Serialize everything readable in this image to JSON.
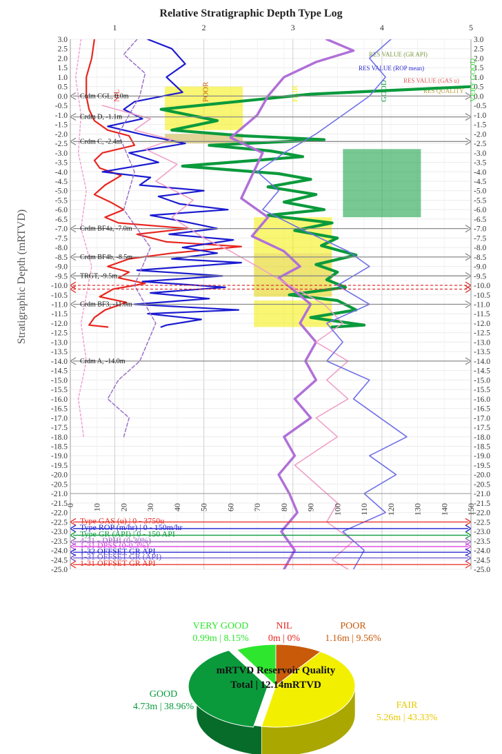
{
  "chart_data": {
    "type": "line",
    "title": "Relative Stratigraphic Depth Type Log",
    "ylabel": "Stratigraphic Depth (mRTVD)",
    "ylim": [
      -25.0,
      3.0
    ],
    "y_tick_step": 0.5,
    "x_bottom": {
      "range": [
        0,
        150
      ],
      "ticks": [
        0,
        10,
        20,
        30,
        40,
        50,
        60,
        70,
        80,
        90,
        100,
        110,
        120,
        130,
        140,
        150
      ]
    },
    "x_top": {
      "range": [
        0.5,
        5
      ],
      "ticks": [
        1,
        2,
        3,
        4,
        5
      ]
    },
    "quality_columns": [
      "NIL",
      "POOR",
      "FAIR",
      "GOOD",
      "VERY GOOD"
    ],
    "quality_colors": {
      "NIL": "#e8261f",
      "POOR": "#c85a0a",
      "FAIR": "#f2ef00",
      "GOOD": "#0a9a3c",
      "VERY GOOD": "#2ee62e"
    },
    "res_value_labels": [
      "RES VALUE (GR API)",
      "RES VALUE (ROP mean)",
      "RES VALUE (GAS u)",
      "RES QUALITY"
    ],
    "markers": [
      {
        "label": "Crdm CGL, 0.0m",
        "depth": 0.0,
        "color": "#8a8a8a"
      },
      {
        "label": "Crdm D, -1.1m",
        "depth": -1.1,
        "color": "#8a8a8a"
      },
      {
        "label": "Crdm C, -2.4m",
        "depth": -2.4,
        "color": "#8a8a8a"
      },
      {
        "label": "Crdm BF4a, -7.0m",
        "depth": -7.0,
        "color": "#8a8a8a"
      },
      {
        "label": "Crdm BF4b, -8.5m",
        "depth": -8.5,
        "color": "#8a8a8a"
      },
      {
        "label": "TRGT, -9.5m",
        "depth": -9.5,
        "color": "#8a8a8a"
      },
      {
        "label": "",
        "depth": -10.0,
        "color": "#e03030"
      },
      {
        "label": "",
        "depth": -10.2,
        "color": "#e03030"
      },
      {
        "label": "Crdm BF3, -11.0m",
        "depth": -11.0,
        "color": "#8a8a8a"
      },
      {
        "label": "Crdm A, -14.0m",
        "depth": -14.0,
        "color": "#8a8a8a"
      }
    ],
    "legend": [
      {
        "label": "Type GAS (u) | 0 - 3750u",
        "depth": -22.5,
        "color": "#e8261f"
      },
      {
        "label": "Type ROP (m/hr) | 0 - 150m/hr",
        "depth": -22.85,
        "color": "#1a1ad0"
      },
      {
        "label": "Type GR (API) | 0 - 150 API",
        "depth": -23.2,
        "color": "#0a9a3c"
      },
      {
        "label": "4-31 - DPHI (0-30%)",
        "depth": -23.55,
        "color": "#9b5fc0"
      },
      {
        "label": "1-31 DPSS (0-0.3%)",
        "depth": -23.8,
        "color": "#e040e0"
      },
      {
        "label": "1-32 OFFSET GR API",
        "depth": -24.1,
        "color": "#1a1ad0"
      },
      {
        "label": "1-31 OFFSET GR (API)",
        "depth": -24.4,
        "color": "#6a4fd0"
      },
      {
        "label": "1-31 OFFSET GR API",
        "depth": -24.75,
        "color": "#e8261f"
      }
    ],
    "series": [
      {
        "name": "Type GAS (u) | 0 - 3750u",
        "color": "#e8261f",
        "width": 2.2,
        "points": [
          [
            9,
            3
          ],
          [
            8,
            2
          ],
          [
            6,
            1
          ],
          [
            6,
            0
          ],
          [
            7,
            -0.7
          ],
          [
            9,
            -1.3
          ],
          [
            14,
            -1.8
          ],
          [
            22,
            -2.1
          ],
          [
            24,
            -2.6
          ],
          [
            12,
            -3
          ],
          [
            9,
            -3.4
          ],
          [
            11,
            -3.8
          ],
          [
            19,
            -4.2
          ],
          [
            13,
            -4.7
          ],
          [
            9,
            -5.2
          ],
          [
            15,
            -5.6
          ],
          [
            20,
            -6
          ],
          [
            13,
            -6.4
          ],
          [
            18,
            -6.7
          ],
          [
            44,
            -7
          ],
          [
            25,
            -7.3
          ],
          [
            36,
            -7.7
          ],
          [
            64,
            -7.95
          ],
          [
            38,
            -8.3
          ],
          [
            22,
            -8.6
          ],
          [
            14,
            -9
          ],
          [
            22,
            -9.3
          ],
          [
            18,
            -9.6
          ],
          [
            28,
            -9.9
          ],
          [
            16,
            -10.2
          ],
          [
            11,
            -10.6
          ],
          [
            21,
            -10.9
          ],
          [
            13,
            -11.3
          ],
          [
            9,
            -11.7
          ],
          [
            7,
            -12.1
          ],
          [
            14,
            -12.2
          ]
        ]
      },
      {
        "name": "Type ROP (m/hr) | 0 - 150m/hr",
        "color": "#1a1ad0",
        "width": 2.2,
        "points": [
          [
            29,
            3
          ],
          [
            38,
            2.5
          ],
          [
            43,
            1.7
          ],
          [
            36,
            1
          ],
          [
            42,
            0.2
          ],
          [
            24,
            -0.3
          ],
          [
            20,
            -0.7
          ],
          [
            27,
            -1.2
          ],
          [
            14,
            -1.6
          ],
          [
            29,
            -2.1
          ],
          [
            43,
            -2.5
          ],
          [
            22,
            -3
          ],
          [
            33,
            -3.5
          ],
          [
            12,
            -4
          ],
          [
            30,
            -4.3
          ],
          [
            26,
            -4.7
          ],
          [
            50,
            -5
          ],
          [
            33,
            -5.3
          ],
          [
            41,
            -5.7
          ],
          [
            59,
            -6
          ],
          [
            30,
            -6.3
          ],
          [
            45,
            -6.7
          ],
          [
            55,
            -7
          ],
          [
            37,
            -7.3
          ],
          [
            61,
            -7.6
          ],
          [
            42,
            -8
          ],
          [
            55,
            -8.3
          ],
          [
            38,
            -8.6
          ],
          [
            64,
            -8.8
          ],
          [
            25,
            -9.2
          ],
          [
            57,
            -9.5
          ],
          [
            27,
            -9.8
          ],
          [
            58,
            -10.1
          ],
          [
            30,
            -10.4
          ],
          [
            52,
            -10.7
          ],
          [
            24,
            -11
          ],
          [
            63,
            -11.3
          ],
          [
            29,
            -11.5
          ],
          [
            49,
            -11.8
          ],
          [
            36,
            -12.1
          ],
          [
            34,
            -12.2
          ]
        ]
      },
      {
        "name": "Type GR (API) | 0 - 150 API",
        "color": "#0a9a3c",
        "width": 4.2,
        "points": [
          [
            150,
            0.5
          ],
          [
            90,
            0.1
          ],
          [
            34,
            -0.7
          ],
          [
            55,
            -1.3
          ],
          [
            38,
            -1.8
          ],
          [
            65,
            -2.1
          ],
          [
            95,
            -2.3
          ],
          [
            52,
            -2.6
          ],
          [
            75,
            -2.9
          ],
          [
            87,
            -3.2
          ],
          [
            42,
            -3.7
          ],
          [
            78,
            -4.1
          ],
          [
            90,
            -4.4
          ],
          [
            74,
            -4.8
          ],
          [
            92,
            -5.2
          ],
          [
            80,
            -5.6
          ],
          [
            95,
            -6
          ],
          [
            74,
            -6.3
          ],
          [
            98,
            -6.7
          ],
          [
            84,
            -7.1
          ],
          [
            100,
            -7.5
          ],
          [
            94,
            -7.9
          ],
          [
            107,
            -8.4
          ],
          [
            92,
            -8.9
          ],
          [
            100,
            -9.3
          ],
          [
            96,
            -9.7
          ],
          [
            103,
            -10.1
          ],
          [
            82,
            -10.5
          ],
          [
            100,
            -10.8
          ],
          [
            107,
            -11.3
          ],
          [
            90,
            -11.7
          ],
          [
            110,
            -12.1
          ],
          [
            98,
            -12.2
          ]
        ]
      },
      {
        "name": "4-31 - DPHI (0-30%)",
        "color": "#b070d8",
        "width": 3.5,
        "points": [
          [
            96,
            3
          ],
          [
            106,
            2.4
          ],
          [
            92,
            1.8
          ],
          [
            80,
            1
          ],
          [
            74,
            0
          ],
          [
            70,
            -1
          ],
          [
            60,
            -2.2
          ],
          [
            72,
            -3
          ],
          [
            68,
            -4.2
          ],
          [
            64,
            -5.4
          ],
          [
            74,
            -6.4
          ],
          [
            68,
            -7.4
          ],
          [
            80,
            -8.2
          ],
          [
            86,
            -9
          ],
          [
            78,
            -9.6
          ],
          [
            84,
            -10.3
          ],
          [
            90,
            -11
          ],
          [
            86,
            -12
          ],
          [
            92,
            -13
          ],
          [
            88,
            -14
          ],
          [
            92,
            -15
          ],
          [
            84,
            -16
          ],
          [
            90,
            -17
          ],
          [
            80,
            -18
          ],
          [
            84,
            -19
          ],
          [
            78,
            -20
          ],
          [
            82,
            -21
          ],
          [
            85,
            -22
          ],
          [
            79,
            -23
          ],
          [
            84,
            -24
          ],
          [
            80,
            -25
          ]
        ]
      },
      {
        "name": "1-31 DPSS (0-0.3%)",
        "color": "#f0a0c8",
        "width": 1.6,
        "points": [
          [
            12,
            -0.5
          ],
          [
            30,
            -1.2
          ],
          [
            24,
            -1.8
          ],
          [
            38,
            -2.3
          ],
          [
            28,
            -2.8
          ],
          [
            40,
            -3.6
          ],
          [
            32,
            -4.5
          ],
          [
            46,
            -5.5
          ],
          [
            38,
            -6.4
          ],
          [
            50,
            -7.5
          ],
          [
            60,
            -8.2
          ],
          [
            70,
            -9
          ],
          [
            82,
            -10
          ],
          [
            95,
            -11
          ],
          [
            102,
            -12
          ],
          [
            92,
            -13
          ],
          [
            104,
            -14
          ],
          [
            96,
            -15
          ],
          [
            104,
            -16
          ],
          [
            92,
            -17
          ],
          [
            100,
            -18
          ],
          [
            84,
            -19.5
          ],
          [
            92,
            -20.5
          ],
          [
            100,
            -21.5
          ],
          [
            96,
            -22.5
          ],
          [
            106,
            -23.5
          ],
          [
            98,
            -24.5
          ],
          [
            104,
            -25
          ]
        ]
      },
      {
        "name": "1-32 OFFSET GR API",
        "color": "#7070e8",
        "width": 1.6,
        "points": [
          [
            120,
            3
          ],
          [
            112,
            2
          ],
          [
            118,
            1
          ],
          [
            112,
            0
          ],
          [
            102,
            -1
          ],
          [
            92,
            -2
          ],
          [
            80,
            -3
          ],
          [
            70,
            -4
          ],
          [
            78,
            -5
          ],
          [
            72,
            -6
          ],
          [
            86,
            -7
          ],
          [
            104,
            -8.2
          ],
          [
            112,
            -9
          ],
          [
            100,
            -10
          ],
          [
            112,
            -11
          ],
          [
            96,
            -12
          ],
          [
            102,
            -13
          ],
          [
            96,
            -14
          ],
          [
            112,
            -15
          ],
          [
            106,
            -16
          ],
          [
            116,
            -17
          ],
          [
            126,
            -18
          ],
          [
            112,
            -19
          ],
          [
            122,
            -20
          ],
          [
            110,
            -21
          ],
          [
            118,
            -22
          ],
          [
            102,
            -23
          ],
          [
            110,
            -24
          ],
          [
            106,
            -25
          ]
        ]
      },
      {
        "name": "1-31 OFFSET GR (API)",
        "color": "#9b6fc8",
        "width": 1.5,
        "dash": "5,3",
        "points": [
          [
            25,
            3
          ],
          [
            20,
            2.2
          ],
          [
            28,
            1.2
          ],
          [
            26,
            0
          ],
          [
            18,
            -2
          ],
          [
            24,
            -4
          ],
          [
            20,
            -6
          ],
          [
            30,
            -8
          ],
          [
            24,
            -10
          ],
          [
            32,
            -12
          ],
          [
            26,
            -14
          ],
          [
            18,
            -15
          ],
          [
            14,
            -16
          ],
          [
            22,
            -17
          ],
          [
            20,
            -18
          ]
        ]
      },
      {
        "name": "1-31 OFFSET GR API",
        "color": "#f0a0d0",
        "width": 1.5,
        "dash": "3,3",
        "points": [
          [
            4,
            3
          ],
          [
            2,
            1
          ],
          [
            4,
            -1
          ],
          [
            3,
            -3
          ],
          [
            6,
            -5
          ],
          [
            4,
            -7
          ],
          [
            8,
            -9
          ],
          [
            4,
            -12
          ],
          [
            6,
            -14
          ],
          [
            3,
            -16
          ],
          [
            5,
            -18
          ]
        ]
      }
    ],
    "quality_blocks": [
      {
        "top": 0.5,
        "bottom": -1.8,
        "column": "POOR",
        "color": "#f2ef00"
      },
      {
        "top": -2.0,
        "bottom": -2.5,
        "column": "POOR",
        "color": "#c8b040"
      },
      {
        "top": -2.8,
        "bottom": -6.4,
        "column": "GOOD",
        "color": "#0a9a3c"
      },
      {
        "top": -6.4,
        "bottom": -8.3,
        "column": "FAIR",
        "color": "#f2ef00"
      },
      {
        "top": -8.3,
        "bottom": -10.6,
        "column": "FAIR",
        "color": "#e0d000"
      },
      {
        "top": -10.8,
        "bottom": -12.2,
        "column": "FAIR",
        "color": "#f2ef00"
      }
    ],
    "pie": {
      "title_line1": "mRTVD Reservoir Quality",
      "title_line2": "Total | 12.14mRTVD",
      "slices": [
        {
          "label": "NIL",
          "value_text": "0m | 0%",
          "value": 0.0,
          "color": "#e8261f"
        },
        {
          "label": "POOR",
          "value_text": "1.16m | 9.56%",
          "value": 1.16,
          "color": "#c85a0a"
        },
        {
          "label": "FAIR",
          "value_text": "5.26m | 43.33%",
          "value": 5.26,
          "color": "#f2ef00"
        },
        {
          "label": "GOOD",
          "value_text": "4.73m | 38.96%",
          "value": 4.73,
          "color": "#0a9a3c"
        },
        {
          "label": "VERY GOOD",
          "value_text": "0.99m | 8.15%",
          "value": 0.99,
          "color": "#2ee62e"
        }
      ]
    }
  }
}
